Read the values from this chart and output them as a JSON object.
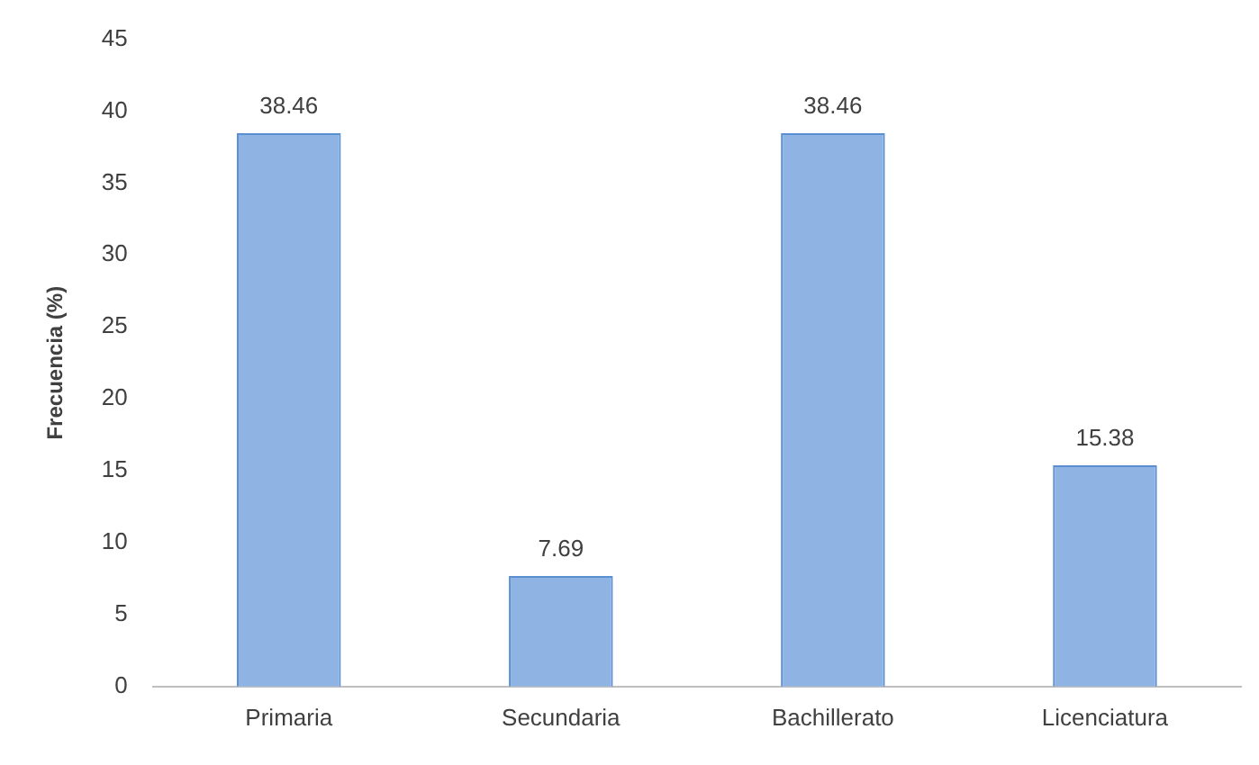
{
  "chart_data": {
    "type": "bar",
    "ylabel": "Frecuencia (%)",
    "categories": [
      "Primaria",
      "Secundaria",
      "Bachillerato",
      "Licenciatura"
    ],
    "values": [
      38.46,
      7.69,
      38.46,
      15.38
    ],
    "color": "#8fb4e3",
    "ylim": [
      0,
      45
    ],
    "yticks": [
      0,
      5,
      10,
      15,
      20,
      25,
      30,
      35,
      40,
      45
    ],
    "grid": false,
    "legend": false,
    "data_labels": true
  }
}
